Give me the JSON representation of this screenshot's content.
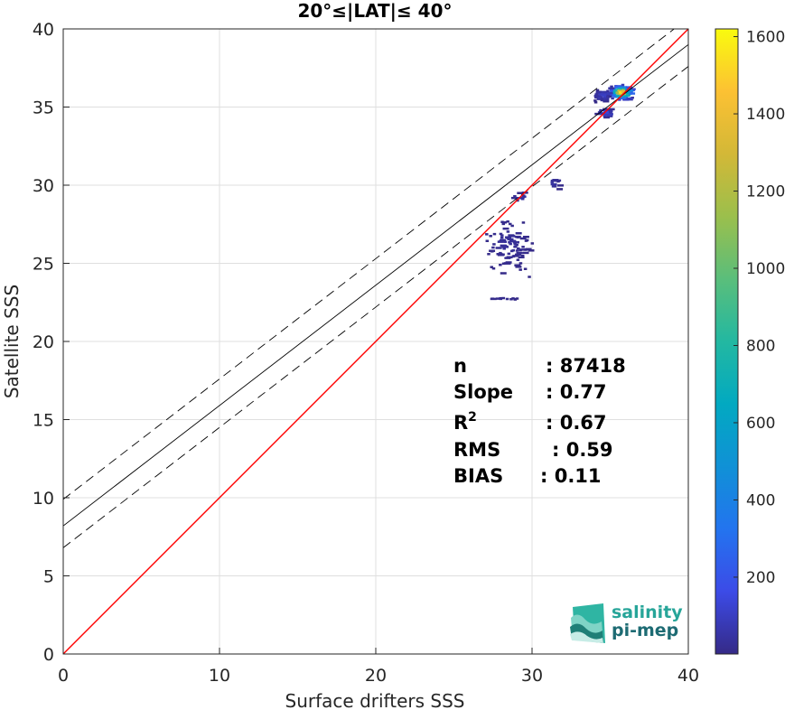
{
  "chart_data": {
    "type": "scatter",
    "subtype": "density-heatmap",
    "title": "20°≤|LAT|≤ 40°",
    "xlabel": "Surface drifters SSS",
    "ylabel": "Satellite SSS",
    "xlim": [
      0,
      40
    ],
    "ylim": [
      0,
      40
    ],
    "xticks": [
      0,
      10,
      20,
      30,
      40
    ],
    "yticks": [
      0,
      5,
      10,
      15,
      20,
      25,
      30,
      35,
      40
    ],
    "grid": true,
    "lines": {
      "identity": {
        "slope": 1,
        "intercept": 0,
        "color": "#ff0000"
      },
      "fit": {
        "slope": 0.77,
        "intercept": 8.2,
        "color": "#000000"
      },
      "fit_upper": {
        "slope": 0.77,
        "intercept": 9.9,
        "color": "#000000",
        "style": "dashed"
      },
      "fit_lower": {
        "slope": 0.77,
        "intercept": 6.8,
        "color": "#000000",
        "style": "dashed"
      }
    },
    "stats": [
      {
        "label": "n",
        "value": ": 87418"
      },
      {
        "label": "Slope",
        "value": ": 0.77"
      },
      {
        "label": "R",
        "sup": "2",
        "value": ": 0.67"
      },
      {
        "label": "RMS",
        "value": ": 0.59"
      },
      {
        "label": "BIAS",
        "value": ": 0.11"
      }
    ],
    "density_clusters": [
      {
        "x": 35.6,
        "y": 36.0,
        "sx": 0.55,
        "sy": 0.35,
        "n": 140,
        "peak": 1600
      },
      {
        "x": 34.4,
        "y": 35.8,
        "sx": 0.45,
        "sy": 0.3,
        "n": 50,
        "peak": 120
      },
      {
        "x": 34.6,
        "y": 34.7,
        "sx": 0.4,
        "sy": 0.25,
        "n": 30,
        "peak": 150
      },
      {
        "x": 31.3,
        "y": 30.2,
        "sx": 0.3,
        "sy": 0.3,
        "n": 10,
        "peak": 60
      },
      {
        "x": 29.2,
        "y": 29.3,
        "sx": 0.5,
        "sy": 0.2,
        "n": 12,
        "peak": 60
      },
      {
        "x": 28.3,
        "y": 26.3,
        "sx": 1.2,
        "sy": 1.5,
        "n": 95,
        "peak": 30
      },
      {
        "x": 28.0,
        "y": 22.8,
        "sx": 0.9,
        "sy": 0.05,
        "n": 12,
        "peak": 20
      }
    ],
    "colorbar": {
      "ticks": [
        200,
        400,
        600,
        800,
        1000,
        1200,
        1400,
        1600
      ],
      "range": [
        1,
        1620
      ],
      "colormap": "parula"
    }
  },
  "logo": {
    "line1": "salinity",
    "line2": "pi-mep",
    "color1": "#27a599",
    "color2": "#1d6b73"
  }
}
